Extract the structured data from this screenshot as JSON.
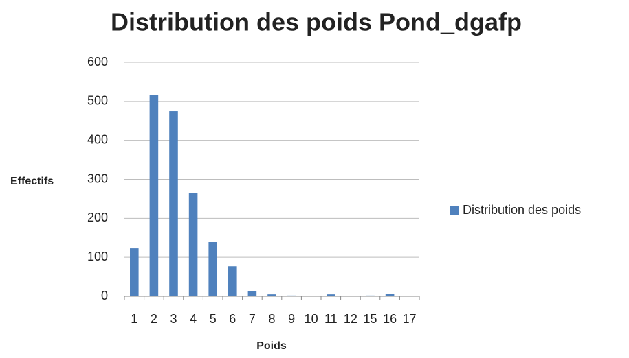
{
  "chart_data": {
    "type": "bar",
    "title": "Distribution des poids Pond_dgafp",
    "x_label": "Poids",
    "y_label": "Effectifs",
    "categories": [
      "1",
      "2",
      "3",
      "4",
      "5",
      "6",
      "7",
      "8",
      "9",
      "10",
      "11",
      "12",
      "15",
      "16",
      "17"
    ],
    "series": [
      {
        "name": "Distribution des poids",
        "color": "#4f81bd",
        "values": [
          123,
          517,
          475,
          264,
          139,
          77,
          14,
          5,
          2,
          0,
          5,
          0,
          2,
          7,
          0
        ]
      }
    ],
    "ylim": [
      0,
      600
    ],
    "yticks": [
      0,
      100,
      200,
      300,
      400,
      500,
      600
    ],
    "grid": true,
    "legend": "right"
  }
}
